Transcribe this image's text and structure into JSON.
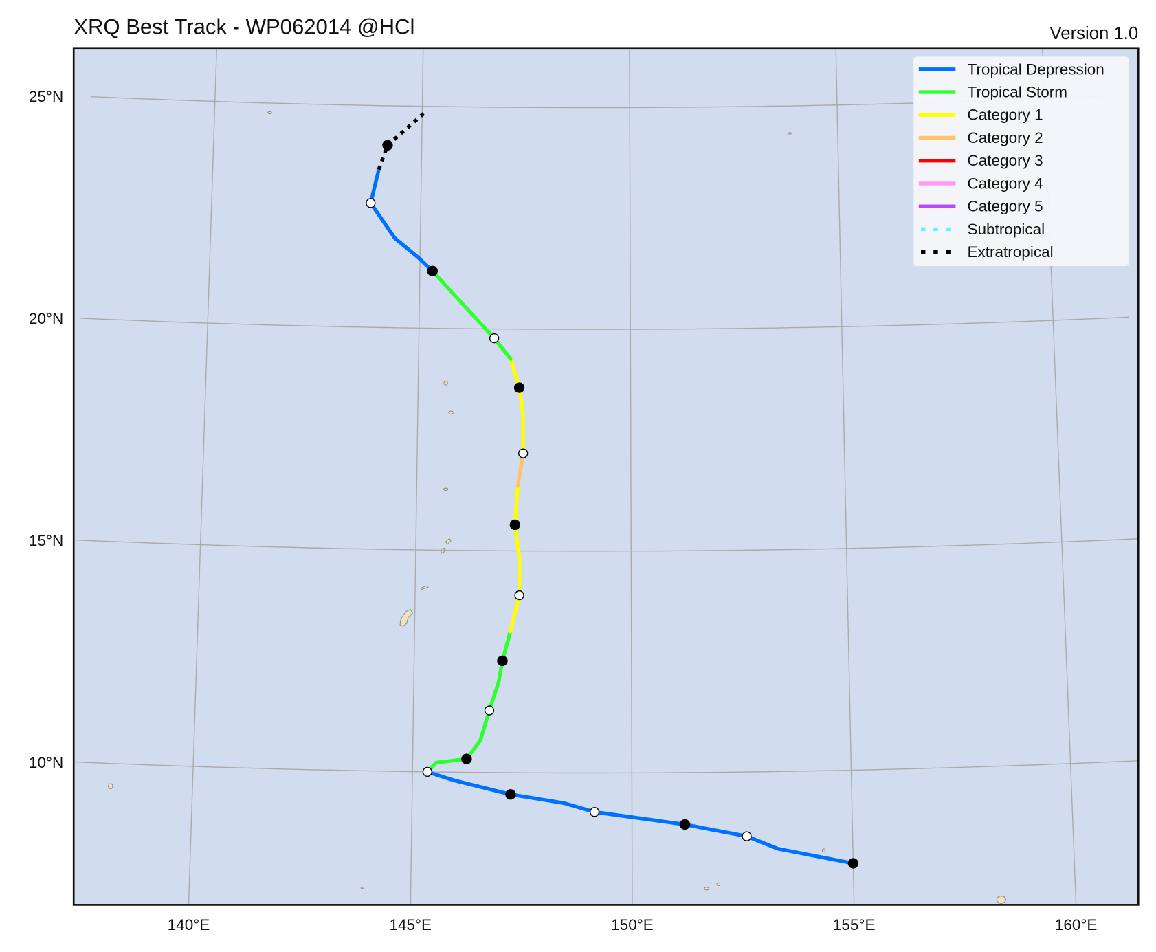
{
  "header": {
    "title": "XRQ Best Track - WP062014  @HCl",
    "version": "Version 1.0"
  },
  "colors": {
    "ocean": "#d1dcee",
    "frame": "#111111",
    "TD": "#0070ff",
    "TS": "#2eff2e",
    "C1": "#ffff00",
    "C2": "#ffc366",
    "C3": "#ff0000",
    "C4": "#ff99f5",
    "C5": "#b44cf5",
    "SS": "#5cf6ff",
    "EX": "#000000"
  },
  "legend": [
    {
      "key": "TD",
      "label": "Tropical Depression",
      "style": "solid"
    },
    {
      "key": "TS",
      "label": "Tropical Storm",
      "style": "solid"
    },
    {
      "key": "C1",
      "label": "Category 1",
      "style": "solid"
    },
    {
      "key": "C2",
      "label": "Category 2",
      "style": "solid"
    },
    {
      "key": "C3",
      "label": "Category 3",
      "style": "solid"
    },
    {
      "key": "C4",
      "label": "Category 4",
      "style": "solid"
    },
    {
      "key": "C5",
      "label": "Category 5",
      "style": "solid"
    },
    {
      "key": "SS",
      "label": "Subtropical",
      "style": "dotted"
    },
    {
      "key": "EX",
      "label": "Extratropical",
      "style": "dotted"
    }
  ],
  "axes": {
    "lon_ticks": [
      {
        "value": 140,
        "label": "140°E"
      },
      {
        "value": 145,
        "label": "145°E"
      },
      {
        "value": 150,
        "label": "150°E"
      },
      {
        "value": 155,
        "label": "155°E"
      },
      {
        "value": 160,
        "label": "160°E"
      }
    ],
    "lat_ticks": [
      {
        "value": 10,
        "label": "10°N"
      },
      {
        "value": 15,
        "label": "15°N"
      },
      {
        "value": 20,
        "label": "20°N"
      },
      {
        "value": 25,
        "label": "25°N"
      }
    ]
  },
  "chart_data": {
    "type": "map-track",
    "title": "XRQ Best Track - WP062014  @HCl",
    "extent": {
      "lon": [
        137.4,
        161.3
      ],
      "lat": [
        6.8,
        26.0
      ]
    },
    "track": [
      {
        "lon": 155.0,
        "lat": 7.9,
        "type": "TD",
        "marker": "filled"
      },
      {
        "lon": 153.3,
        "lat": 8.26,
        "type": "TD",
        "marker": "none"
      },
      {
        "lon": 152.6,
        "lat": 8.55,
        "type": "TD",
        "marker": "open"
      },
      {
        "lon": 151.2,
        "lat": 8.83,
        "type": "TD",
        "marker": "filled"
      },
      {
        "lon": 149.15,
        "lat": 9.12,
        "type": "TD",
        "marker": "open"
      },
      {
        "lon": 148.45,
        "lat": 9.32,
        "type": "TD",
        "marker": "none"
      },
      {
        "lon": 147.24,
        "lat": 9.51,
        "type": "TD",
        "marker": "filled"
      },
      {
        "lon": 145.93,
        "lat": 9.82,
        "type": "TD",
        "marker": "none"
      },
      {
        "lon": 145.34,
        "lat": 10.0,
        "type": "TS",
        "marker": "open"
      },
      {
        "lon": 145.54,
        "lat": 10.21,
        "type": "TS",
        "marker": "none"
      },
      {
        "lon": 146.23,
        "lat": 10.3,
        "type": "TS",
        "marker": "filled"
      },
      {
        "lon": 146.54,
        "lat": 10.72,
        "type": "TS",
        "marker": "none"
      },
      {
        "lon": 146.74,
        "lat": 11.4,
        "type": "TS",
        "marker": "open"
      },
      {
        "lon": 146.95,
        "lat": 12.05,
        "type": "TS",
        "marker": "none"
      },
      {
        "lon": 147.03,
        "lat": 12.52,
        "type": "TS",
        "marker": "filled"
      },
      {
        "lon": 147.21,
        "lat": 13.18,
        "type": "C1",
        "marker": "none"
      },
      {
        "lon": 147.41,
        "lat": 14.0,
        "type": "C1",
        "marker": "open"
      },
      {
        "lon": 147.41,
        "lat": 14.8,
        "type": "C1",
        "marker": "none"
      },
      {
        "lon": 147.3,
        "lat": 15.59,
        "type": "C1",
        "marker": "filled"
      },
      {
        "lon": 147.36,
        "lat": 16.46,
        "type": "C2",
        "marker": "none"
      },
      {
        "lon": 147.48,
        "lat": 17.2,
        "type": "C1",
        "marker": "open"
      },
      {
        "lon": 147.47,
        "lat": 18.12,
        "type": "C1",
        "marker": "none"
      },
      {
        "lon": 147.38,
        "lat": 18.68,
        "type": "C1",
        "marker": "filled"
      },
      {
        "lon": 147.17,
        "lat": 19.33,
        "type": "TS",
        "marker": "none"
      },
      {
        "lon": 146.78,
        "lat": 19.79,
        "type": "TS",
        "marker": "open"
      },
      {
        "lon": 145.3,
        "lat": 21.29,
        "type": "TD",
        "marker": "filled"
      },
      {
        "lon": 144.96,
        "lat": 21.59,
        "type": "TD",
        "marker": "none"
      },
      {
        "lon": 144.39,
        "lat": 22.02,
        "type": "TD",
        "marker": "none"
      },
      {
        "lon": 143.8,
        "lat": 22.8,
        "type": "TD",
        "marker": "open"
      },
      {
        "lon": 143.98,
        "lat": 23.56,
        "type": "EX",
        "marker": "none"
      },
      {
        "lon": 144.18,
        "lat": 24.11,
        "type": "EX",
        "marker": "filled"
      },
      {
        "lon": 145.12,
        "lat": 24.91,
        "type": "EX",
        "marker": "none"
      }
    ]
  }
}
